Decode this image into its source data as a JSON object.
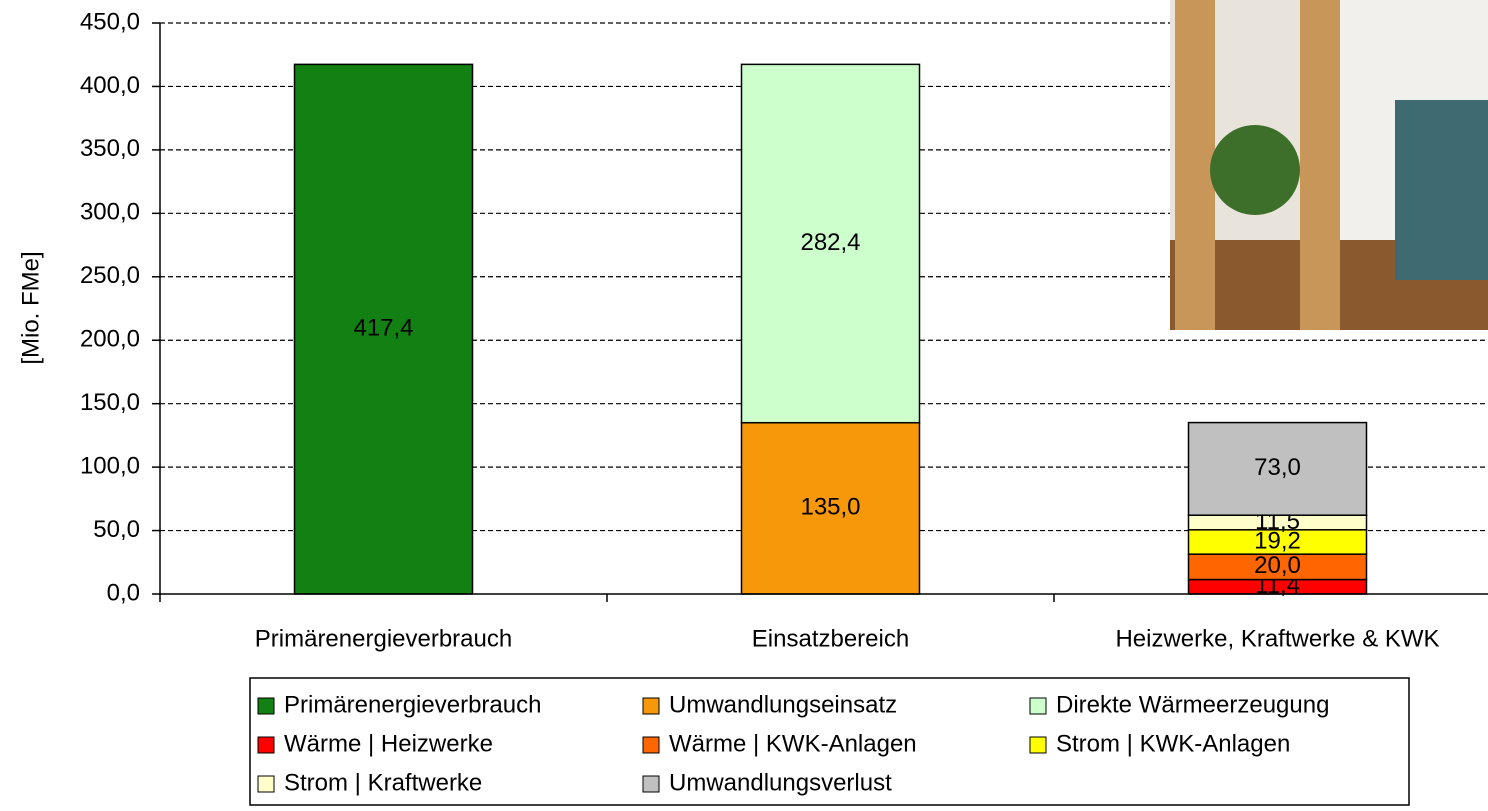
{
  "chart_data": {
    "type": "stacked_bar",
    "y_label": "[Mio. FMe]",
    "categories": [
      "Primärenergieverbrauch",
      "Einsatzbereich",
      "Heizwerke, Kraftwerke & KWK"
    ],
    "series": [
      {
        "name": "Primärenergieverbrauch",
        "color": "#138013",
        "values": [
          417.4,
          null,
          null
        ],
        "value_labels": [
          "417,4",
          null,
          null
        ]
      },
      {
        "name": "Umwandlungseinsatz",
        "color": "#f7970a",
        "values": [
          null,
          135.0,
          null
        ],
        "value_labels": [
          null,
          "135,0",
          null
        ]
      },
      {
        "name": "Direkte Wärmeerzeugung",
        "color": "#ccffcc",
        "values": [
          null,
          282.4,
          null
        ],
        "value_labels": [
          null,
          "282,4",
          null
        ]
      },
      {
        "name": "Wärme | Heizwerke",
        "color": "#ff0000",
        "values": [
          null,
          null,
          11.4
        ],
        "value_labels": [
          null,
          null,
          "11,4"
        ]
      },
      {
        "name": "Wärme | KWK-Anlagen",
        "color": "#ff6600",
        "values": [
          null,
          null,
          20.0
        ],
        "value_labels": [
          null,
          null,
          "20,0"
        ]
      },
      {
        "name": "Strom | KWK-Anlagen",
        "color": "#ffff00",
        "values": [
          null,
          null,
          19.2
        ],
        "value_labels": [
          null,
          null,
          "19,2"
        ]
      },
      {
        "name": "Strom | Kraftwerke",
        "color": "#ffffcc",
        "values": [
          null,
          null,
          11.5
        ],
        "value_labels": [
          null,
          null,
          "11,5"
        ]
      },
      {
        "name": "Umwandlungsverlust",
        "color": "#c0c0c0",
        "values": [
          null,
          null,
          73.0
        ],
        "value_labels": [
          null,
          null,
          "73,0"
        ]
      }
    ],
    "ylim": [
      0,
      450
    ],
    "yticks": [
      {
        "value": 0,
        "label": "0,0"
      },
      {
        "value": 50,
        "label": "50,0"
      },
      {
        "value": 100,
        "label": "100,0"
      },
      {
        "value": 150,
        "label": "150,0"
      },
      {
        "value": 200,
        "label": "200,0"
      },
      {
        "value": 250,
        "label": "250,0"
      },
      {
        "value": 300,
        "label": "300,0"
      },
      {
        "value": 350,
        "label": "350,0"
      },
      {
        "value": 400,
        "label": "400,0"
      },
      {
        "value": 450,
        "label": "450,0"
      }
    ],
    "grid": true
  }
}
